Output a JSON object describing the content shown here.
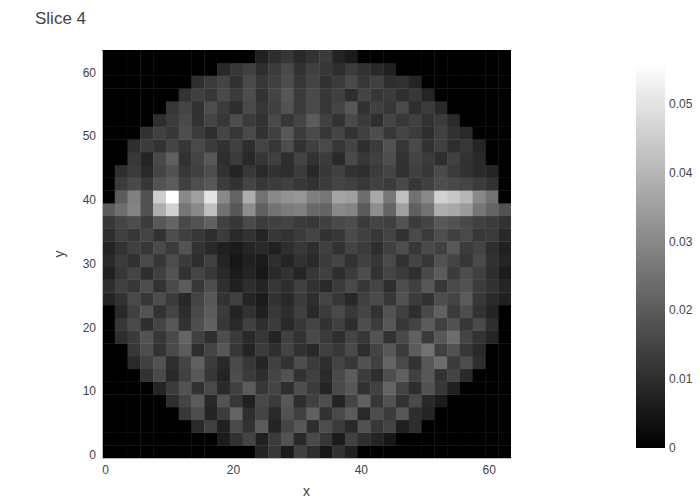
{
  "chart_data": {
    "type": "heatmap",
    "title": "Slice 4",
    "x_label": "x",
    "y_label": "y",
    "x": [
      0.5,
      2.5,
      4.5,
      6.5,
      8.5,
      10.5,
      12.5,
      14.5,
      16.5,
      18.5,
      20.5,
      22.5,
      24.5,
      26.5,
      28.5,
      30.5,
      32.5,
      34.5,
      36.5,
      38.5,
      40.5,
      42.5,
      44.5,
      46.5,
      48.5,
      50.5,
      52.5,
      54.5,
      56.5,
      58.5,
      60.5,
      62.5
    ],
    "y": [
      0.5,
      2.5,
      4.5,
      6.5,
      8.5,
      10.5,
      12.5,
      14.5,
      16.5,
      18.5,
      20.5,
      22.5,
      24.5,
      26.5,
      28.5,
      30.5,
      32.5,
      34.5,
      36.5,
      38.5,
      40.5,
      42.5,
      44.5,
      46.5,
      48.5,
      50.5,
      52.5,
      54.5,
      56.5,
      58.5,
      60.5,
      62.5
    ],
    "z": [
      [
        0,
        0,
        0,
        0,
        0,
        0,
        0,
        0,
        0,
        0,
        0,
        0,
        0.008,
        0.012,
        0.006,
        0.014,
        0.01,
        0.005,
        0.011,
        0.007,
        0,
        0,
        0,
        0,
        0,
        0,
        0,
        0,
        0,
        0,
        0,
        0
      ],
      [
        0,
        0,
        0,
        0,
        0,
        0,
        0,
        0,
        0,
        0.006,
        0.011,
        0.015,
        0.007,
        0.013,
        0.018,
        0.009,
        0.016,
        0.012,
        0.006,
        0.014,
        0.01,
        0.008,
        0.005,
        0,
        0,
        0,
        0,
        0,
        0,
        0,
        0,
        0
      ],
      [
        0,
        0,
        0,
        0,
        0,
        0,
        0,
        0.009,
        0.014,
        0.007,
        0.016,
        0.011,
        0.02,
        0.008,
        0.015,
        0.019,
        0.01,
        0.017,
        0.013,
        0.009,
        0.018,
        0.012,
        0.015,
        0.007,
        0.01,
        0,
        0,
        0,
        0,
        0,
        0,
        0
      ],
      [
        0,
        0,
        0,
        0,
        0,
        0,
        0.012,
        0.017,
        0.008,
        0.013,
        0.022,
        0.01,
        0.015,
        0.009,
        0.018,
        0.014,
        0.021,
        0.011,
        0.016,
        0.02,
        0.009,
        0.017,
        0.013,
        0.019,
        0.01,
        0.008,
        0,
        0,
        0,
        0,
        0,
        0
      ],
      [
        0,
        0,
        0,
        0,
        0,
        0.01,
        0.015,
        0.02,
        0.009,
        0.018,
        0.012,
        0.007,
        0.016,
        0.013,
        0.019,
        0.01,
        0.014,
        0.017,
        0.008,
        0.015,
        0.021,
        0.012,
        0.018,
        0.011,
        0.016,
        0.009,
        0.006,
        0,
        0,
        0,
        0,
        0
      ],
      [
        0,
        0,
        0,
        0,
        0.008,
        0.013,
        0.018,
        0.011,
        0.016,
        0.009,
        0.014,
        0.02,
        0.012,
        0.015,
        0.01,
        0.017,
        0.013,
        0.008,
        0.016,
        0.019,
        0.011,
        0.014,
        0.022,
        0.015,
        0.01,
        0.018,
        0.012,
        0.007,
        0,
        0,
        0,
        0
      ],
      [
        0,
        0,
        0,
        0.011,
        0.016,
        0.009,
        0.014,
        0.019,
        0.012,
        0.008,
        0.017,
        0.013,
        0.01,
        0.015,
        0.018,
        0.011,
        0.014,
        0.009,
        0.016,
        0.02,
        0.013,
        0.01,
        0.017,
        0.021,
        0.014,
        0.019,
        0.011,
        0.015,
        0.009,
        0,
        0,
        0
      ],
      [
        0,
        0,
        0.009,
        0.014,
        0.018,
        0.01,
        0.015,
        0.021,
        0.013,
        0.009,
        0.016,
        0.012,
        0.008,
        0.014,
        0.011,
        0.017,
        0.013,
        0.01,
        0.015,
        0.012,
        0.018,
        0.014,
        0.022,
        0.016,
        0.011,
        0.019,
        0.024,
        0.013,
        0.017,
        0.01,
        0,
        0
      ],
      [
        0,
        0,
        0.012,
        0.017,
        0.011,
        0.016,
        0.02,
        0.01,
        0.015,
        0.019,
        0.012,
        0.008,
        0.013,
        0.01,
        0.015,
        0.011,
        0.009,
        0.014,
        0.012,
        0.016,
        0.01,
        0.015,
        0.019,
        0.013,
        0.02,
        0.025,
        0.014,
        0.018,
        0.012,
        0.009,
        0,
        0
      ],
      [
        0,
        0.01,
        0.013,
        0.018,
        0.012,
        0.016,
        0.022,
        0.014,
        0.01,
        0.017,
        0.013,
        0.009,
        0.012,
        0.008,
        0.014,
        0.011,
        0.016,
        0.013,
        0.01,
        0.015,
        0.012,
        0.018,
        0.011,
        0.016,
        0.021,
        0.013,
        0.019,
        0.024,
        0.015,
        0.011,
        0.008,
        0
      ],
      [
        0,
        0.012,
        0.016,
        0.01,
        0.015,
        0.019,
        0.011,
        0.017,
        0.021,
        0.012,
        0.009,
        0.014,
        0.01,
        0.013,
        0.009,
        0.012,
        0.015,
        0.011,
        0.014,
        0.01,
        0.017,
        0.013,
        0.019,
        0.012,
        0.015,
        0.02,
        0.014,
        0.018,
        0.012,
        0.016,
        0.01,
        0
      ],
      [
        0,
        0.009,
        0.014,
        0.018,
        0.011,
        0.015,
        0.01,
        0.016,
        0.02,
        0.013,
        0.008,
        0.011,
        0.007,
        0.012,
        0.01,
        0.014,
        0.009,
        0.013,
        0.016,
        0.012,
        0.015,
        0.011,
        0.018,
        0.014,
        0.01,
        0.016,
        0.021,
        0.013,
        0.017,
        0.011,
        0.008,
        0
      ],
      [
        0.008,
        0.011,
        0.016,
        0.012,
        0.017,
        0.013,
        0.009,
        0.015,
        0.019,
        0.011,
        0.014,
        0.008,
        0.006,
        0.011,
        0.009,
        0.013,
        0.01,
        0.015,
        0.012,
        0.009,
        0.014,
        0.016,
        0.012,
        0.018,
        0.013,
        0.011,
        0.017,
        0.015,
        0.02,
        0.012,
        0.009,
        0.007
      ],
      [
        0.01,
        0.014,
        0.012,
        0.017,
        0.011,
        0.016,
        0.02,
        0.012,
        0.017,
        0.01,
        0.007,
        0.01,
        0.008,
        0.012,
        0.01,
        0.014,
        0.011,
        0.009,
        0.013,
        0.016,
        0.012,
        0.015,
        0.01,
        0.017,
        0.014,
        0.019,
        0.012,
        0.016,
        0.018,
        0.013,
        0.011,
        0.008
      ],
      [
        0.007,
        0.012,
        0.015,
        0.01,
        0.014,
        0.018,
        0.011,
        0.015,
        0.012,
        0.009,
        0.006,
        0.008,
        0.005,
        0.009,
        0.011,
        0.008,
        0.012,
        0.014,
        0.01,
        0.013,
        0.017,
        0.011,
        0.015,
        0.013,
        0.01,
        0.016,
        0.02,
        0.013,
        0.017,
        0.014,
        0.01,
        0.006
      ],
      [
        0.009,
        0.013,
        0.011,
        0.016,
        0.012,
        0.017,
        0.013,
        0.01,
        0.014,
        0.008,
        0.005,
        0.007,
        0.006,
        0.01,
        0.008,
        0.011,
        0.009,
        0.013,
        0.015,
        0.011,
        0.014,
        0.012,
        0.016,
        0.011,
        0.015,
        0.012,
        0.018,
        0.015,
        0.012,
        0.016,
        0.011,
        0.008
      ],
      [
        0.008,
        0.011,
        0.014,
        0.012,
        0.016,
        0.013,
        0.018,
        0.011,
        0.009,
        0.007,
        0.006,
        0.008,
        0.009,
        0.007,
        0.01,
        0.012,
        0.01,
        0.014,
        0.011,
        0.015,
        0.013,
        0.01,
        0.014,
        0.017,
        0.012,
        0.016,
        0.014,
        0.019,
        0.013,
        0.015,
        0.01,
        0.007
      ],
      [
        0.01,
        0.014,
        0.012,
        0.015,
        0.011,
        0.017,
        0.014,
        0.012,
        0.01,
        0.013,
        0.009,
        0.011,
        0.008,
        0.012,
        0.011,
        0.013,
        0.015,
        0.011,
        0.012,
        0.016,
        0.014,
        0.012,
        0.015,
        0.011,
        0.016,
        0.013,
        0.017,
        0.014,
        0.016,
        0.012,
        0.013,
        0.009
      ],
      [
        0.012,
        0.015,
        0.017,
        0.013,
        0.019,
        0.022,
        0.016,
        0.018,
        0.021,
        0.014,
        0.012,
        0.016,
        0.013,
        0.014,
        0.015,
        0.013,
        0.012,
        0.014,
        0.016,
        0.017,
        0.013,
        0.015,
        0.014,
        0.018,
        0.013,
        0.015,
        0.019,
        0.018,
        0.016,
        0.014,
        0.013,
        0.011
      ],
      [
        0.02,
        0.024,
        0.029,
        0.018,
        0.038,
        0.046,
        0.026,
        0.03,
        0.042,
        0.025,
        0.019,
        0.031,
        0.021,
        0.025,
        0.027,
        0.028,
        0.023,
        0.022,
        0.03,
        0.029,
        0.02,
        0.031,
        0.022,
        0.035,
        0.021,
        0.025,
        0.038,
        0.037,
        0.034,
        0.026,
        0.022,
        0.018
      ],
      [
        0,
        0.02,
        0.028,
        0.018,
        0.045,
        0.056,
        0.03,
        0.035,
        0.05,
        0.03,
        0.022,
        0.038,
        0.025,
        0.03,
        0.032,
        0.033,
        0.028,
        0.026,
        0.036,
        0.035,
        0.024,
        0.037,
        0.026,
        0.042,
        0.025,
        0.03,
        0.046,
        0.044,
        0.04,
        0.03,
        0.025,
        0
      ],
      [
        0,
        0.013,
        0.016,
        0.012,
        0.018,
        0.02,
        0.014,
        0.017,
        0.019,
        0.013,
        0.011,
        0.015,
        0.012,
        0.013,
        0.014,
        0.012,
        0.011,
        0.013,
        0.015,
        0.014,
        0.012,
        0.014,
        0.013,
        0.016,
        0.012,
        0.014,
        0.017,
        0.016,
        0.015,
        0.013,
        0.011,
        0
      ],
      [
        0,
        0.01,
        0.013,
        0.009,
        0.015,
        0.018,
        0.012,
        0.014,
        0.017,
        0.011,
        0.008,
        0.012,
        0.009,
        0.011,
        0.01,
        0.013,
        0.009,
        0.012,
        0.014,
        0.011,
        0.01,
        0.013,
        0.015,
        0.011,
        0.014,
        0.012,
        0.016,
        0.013,
        0.011,
        0.009,
        0.008,
        0
      ],
      [
        0,
        0,
        0.012,
        0.008,
        0.016,
        0.021,
        0.011,
        0.015,
        0.019,
        0.01,
        0.013,
        0.009,
        0.012,
        0.014,
        0.01,
        0.015,
        0.011,
        0.013,
        0.009,
        0.016,
        0.012,
        0.014,
        0.017,
        0.011,
        0.015,
        0.013,
        0.01,
        0.014,
        0.011,
        0.009,
        0,
        0
      ],
      [
        0,
        0,
        0.01,
        0.013,
        0.011,
        0.015,
        0.012,
        0.016,
        0.013,
        0.011,
        0.014,
        0.01,
        0.015,
        0.012,
        0.017,
        0.011,
        0.014,
        0.016,
        0.012,
        0.015,
        0.01,
        0.013,
        0.018,
        0.012,
        0.016,
        0.011,
        0.014,
        0.01,
        0.012,
        0.008,
        0,
        0
      ],
      [
        0,
        0,
        0,
        0.011,
        0.014,
        0.012,
        0.017,
        0.013,
        0.01,
        0.015,
        0.012,
        0.016,
        0.011,
        0.014,
        0.019,
        0.013,
        0.016,
        0.012,
        0.015,
        0.011,
        0.014,
        0.017,
        0.012,
        0.015,
        0.013,
        0.01,
        0.014,
        0.011,
        0.009,
        0,
        0,
        0
      ],
      [
        0,
        0,
        0,
        0,
        0.01,
        0.013,
        0.016,
        0.011,
        0.015,
        0.012,
        0.017,
        0.013,
        0.011,
        0.016,
        0.012,
        0.015,
        0.02,
        0.014,
        0.011,
        0.016,
        0.013,
        0.01,
        0.015,
        0.012,
        0.014,
        0.011,
        0.013,
        0.009,
        0,
        0,
        0,
        0
      ],
      [
        0,
        0,
        0,
        0,
        0,
        0.012,
        0.015,
        0.011,
        0.017,
        0.013,
        0.01,
        0.016,
        0.012,
        0.014,
        0.018,
        0.013,
        0.016,
        0.012,
        0.015,
        0.019,
        0.011,
        0.014,
        0.012,
        0.016,
        0.01,
        0.013,
        0.009,
        0,
        0,
        0,
        0,
        0
      ],
      [
        0,
        0,
        0,
        0,
        0,
        0,
        0.011,
        0.014,
        0.012,
        0.016,
        0.013,
        0.017,
        0.011,
        0.015,
        0.019,
        0.013,
        0.016,
        0.012,
        0.014,
        0.01,
        0.015,
        0.012,
        0.013,
        0.01,
        0.012,
        0.008,
        0,
        0,
        0,
        0,
        0,
        0
      ],
      [
        0,
        0,
        0,
        0,
        0,
        0,
        0,
        0.01,
        0.013,
        0.015,
        0.011,
        0.016,
        0.012,
        0.014,
        0.017,
        0.012,
        0.015,
        0.011,
        0.013,
        0.016,
        0.012,
        0.014,
        0.01,
        0.011,
        0.008,
        0,
        0,
        0,
        0,
        0,
        0,
        0
      ],
      [
        0,
        0,
        0,
        0,
        0,
        0,
        0,
        0,
        0,
        0.009,
        0.012,
        0.014,
        0.01,
        0.013,
        0.016,
        0.011,
        0.014,
        0.012,
        0.01,
        0.013,
        0.011,
        0.009,
        0.007,
        0,
        0,
        0,
        0,
        0,
        0,
        0,
        0,
        0
      ],
      [
        0,
        0,
        0,
        0,
        0,
        0,
        0,
        0,
        0,
        0,
        0,
        0,
        0.007,
        0.01,
        0.012,
        0.009,
        0.011,
        0.013,
        0.008,
        0.006,
        0,
        0,
        0,
        0,
        0,
        0,
        0,
        0,
        0,
        0,
        0,
        0
      ]
    ],
    "xlim": [
      -0.5,
      63.5
    ],
    "ylim": [
      -0.5,
      63.5
    ],
    "xticks": [
      0,
      20,
      40,
      60
    ],
    "yticks": [
      0,
      10,
      20,
      30,
      40,
      50,
      60
    ],
    "colorbar": {
      "range": [
        0,
        0.056
      ],
      "ticks": [
        0,
        0.01,
        0.02,
        0.03,
        0.04,
        0.05
      ]
    }
  }
}
